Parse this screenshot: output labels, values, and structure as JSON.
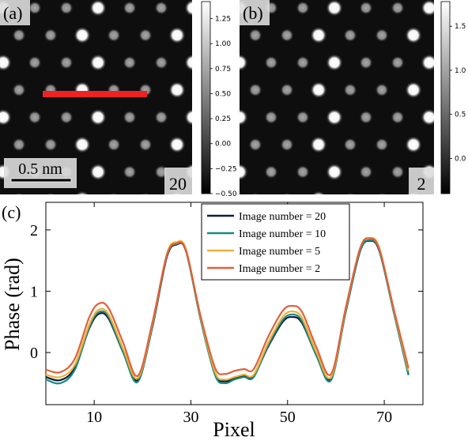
{
  "panel_a": {
    "label": "(a)",
    "scalebar_label": "0.5 nm",
    "number_label": "20",
    "colorbar_ticks": [
      "1.25",
      "1.00",
      "0.75",
      "0.50",
      "0.25",
      "0.00",
      "−0.25",
      "−0.50"
    ],
    "colorbar_values": [
      1.25,
      1.0,
      0.75,
      0.5,
      0.25,
      0.0,
      -0.25,
      -0.5
    ],
    "colorbar_range": [
      -0.5,
      1.42
    ],
    "line_color": "#ee2222"
  },
  "panel_b": {
    "label": "(b)",
    "number_label": "2",
    "colorbar_ticks": [
      "1.5",
      "1.0",
      "0.5",
      "0.0"
    ],
    "colorbar_values": [
      1.5,
      1.0,
      0.5,
      0.0
    ],
    "colorbar_range": [
      -0.4,
      1.78
    ]
  },
  "panel_c": {
    "label": "(c)"
  },
  "chart_data": {
    "type": "line",
    "xlabel": "Pixel",
    "ylabel": "Phase (rad)",
    "xlim": [
      0,
      78
    ],
    "ylim": [
      -0.85,
      2.45
    ],
    "xticks": [
      10,
      30,
      50,
      70
    ],
    "yticks": [
      0,
      1,
      2
    ],
    "legend": "top-right",
    "series": [
      {
        "name": "Image number = 20",
        "color": "#0b1e3a",
        "x": [
          0,
          3,
          6,
          9,
          11,
          13,
          16,
          19,
          22,
          25,
          27,
          29,
          32,
          35,
          37,
          39,
          41,
          43,
          46,
          49,
          51,
          53,
          56,
          59,
          62,
          65,
          67,
          69,
          72,
          75
        ],
        "y": [
          -0.4,
          -0.45,
          -0.25,
          0.4,
          0.63,
          0.55,
          0.0,
          -0.45,
          0.4,
          1.55,
          1.76,
          1.65,
          0.55,
          -0.35,
          -0.47,
          -0.42,
          -0.38,
          -0.38,
          0.1,
          0.5,
          0.58,
          0.48,
          -0.05,
          -0.42,
          0.65,
          1.65,
          1.82,
          1.65,
          0.65,
          -0.35
        ]
      },
      {
        "name": "Image number = 10",
        "color": "#1a8a84",
        "x": [
          0,
          3,
          6,
          9,
          11,
          13,
          16,
          19,
          22,
          25,
          27,
          29,
          32,
          35,
          37,
          39,
          41,
          43,
          46,
          49,
          51,
          53,
          56,
          59,
          62,
          65,
          67,
          69,
          72,
          75
        ],
        "y": [
          -0.44,
          -0.5,
          -0.28,
          0.42,
          0.66,
          0.58,
          0.0,
          -0.48,
          0.42,
          1.57,
          1.77,
          1.66,
          0.54,
          -0.37,
          -0.5,
          -0.44,
          -0.4,
          -0.4,
          0.12,
          0.53,
          0.62,
          0.51,
          -0.06,
          -0.45,
          0.66,
          1.66,
          1.83,
          1.66,
          0.64,
          -0.37
        ]
      },
      {
        "name": "Image number = 5",
        "color": "#f2b035",
        "x": [
          0,
          3,
          6,
          9,
          11,
          13,
          16,
          19,
          22,
          25,
          27,
          29,
          32,
          35,
          37,
          39,
          41,
          43,
          46,
          49,
          51,
          53,
          56,
          59,
          62,
          65,
          67,
          69,
          72,
          75
        ],
        "y": [
          -0.36,
          -0.4,
          -0.2,
          0.46,
          0.7,
          0.62,
          0.06,
          -0.42,
          0.45,
          1.6,
          1.8,
          1.68,
          0.58,
          -0.32,
          -0.44,
          -0.4,
          -0.36,
          -0.36,
          0.16,
          0.58,
          0.67,
          0.56,
          0.0,
          -0.4,
          0.7,
          1.7,
          1.87,
          1.7,
          0.68,
          -0.3
        ]
      },
      {
        "name": "Image number = 2",
        "color": "#e0613a",
        "x": [
          0,
          3,
          6,
          9,
          11,
          13,
          16,
          19,
          22,
          25,
          27,
          29,
          32,
          35,
          37,
          39,
          41,
          43,
          46,
          49,
          51,
          53,
          56,
          59,
          62,
          65,
          67,
          69,
          72,
          75
        ],
        "y": [
          -0.28,
          -0.32,
          -0.1,
          0.58,
          0.8,
          0.72,
          0.16,
          -0.38,
          0.48,
          1.58,
          1.78,
          1.66,
          0.6,
          -0.25,
          -0.35,
          -0.3,
          -0.27,
          -0.27,
          0.26,
          0.68,
          0.76,
          0.66,
          0.08,
          -0.35,
          0.72,
          1.7,
          1.86,
          1.68,
          0.7,
          -0.25
        ]
      }
    ]
  }
}
